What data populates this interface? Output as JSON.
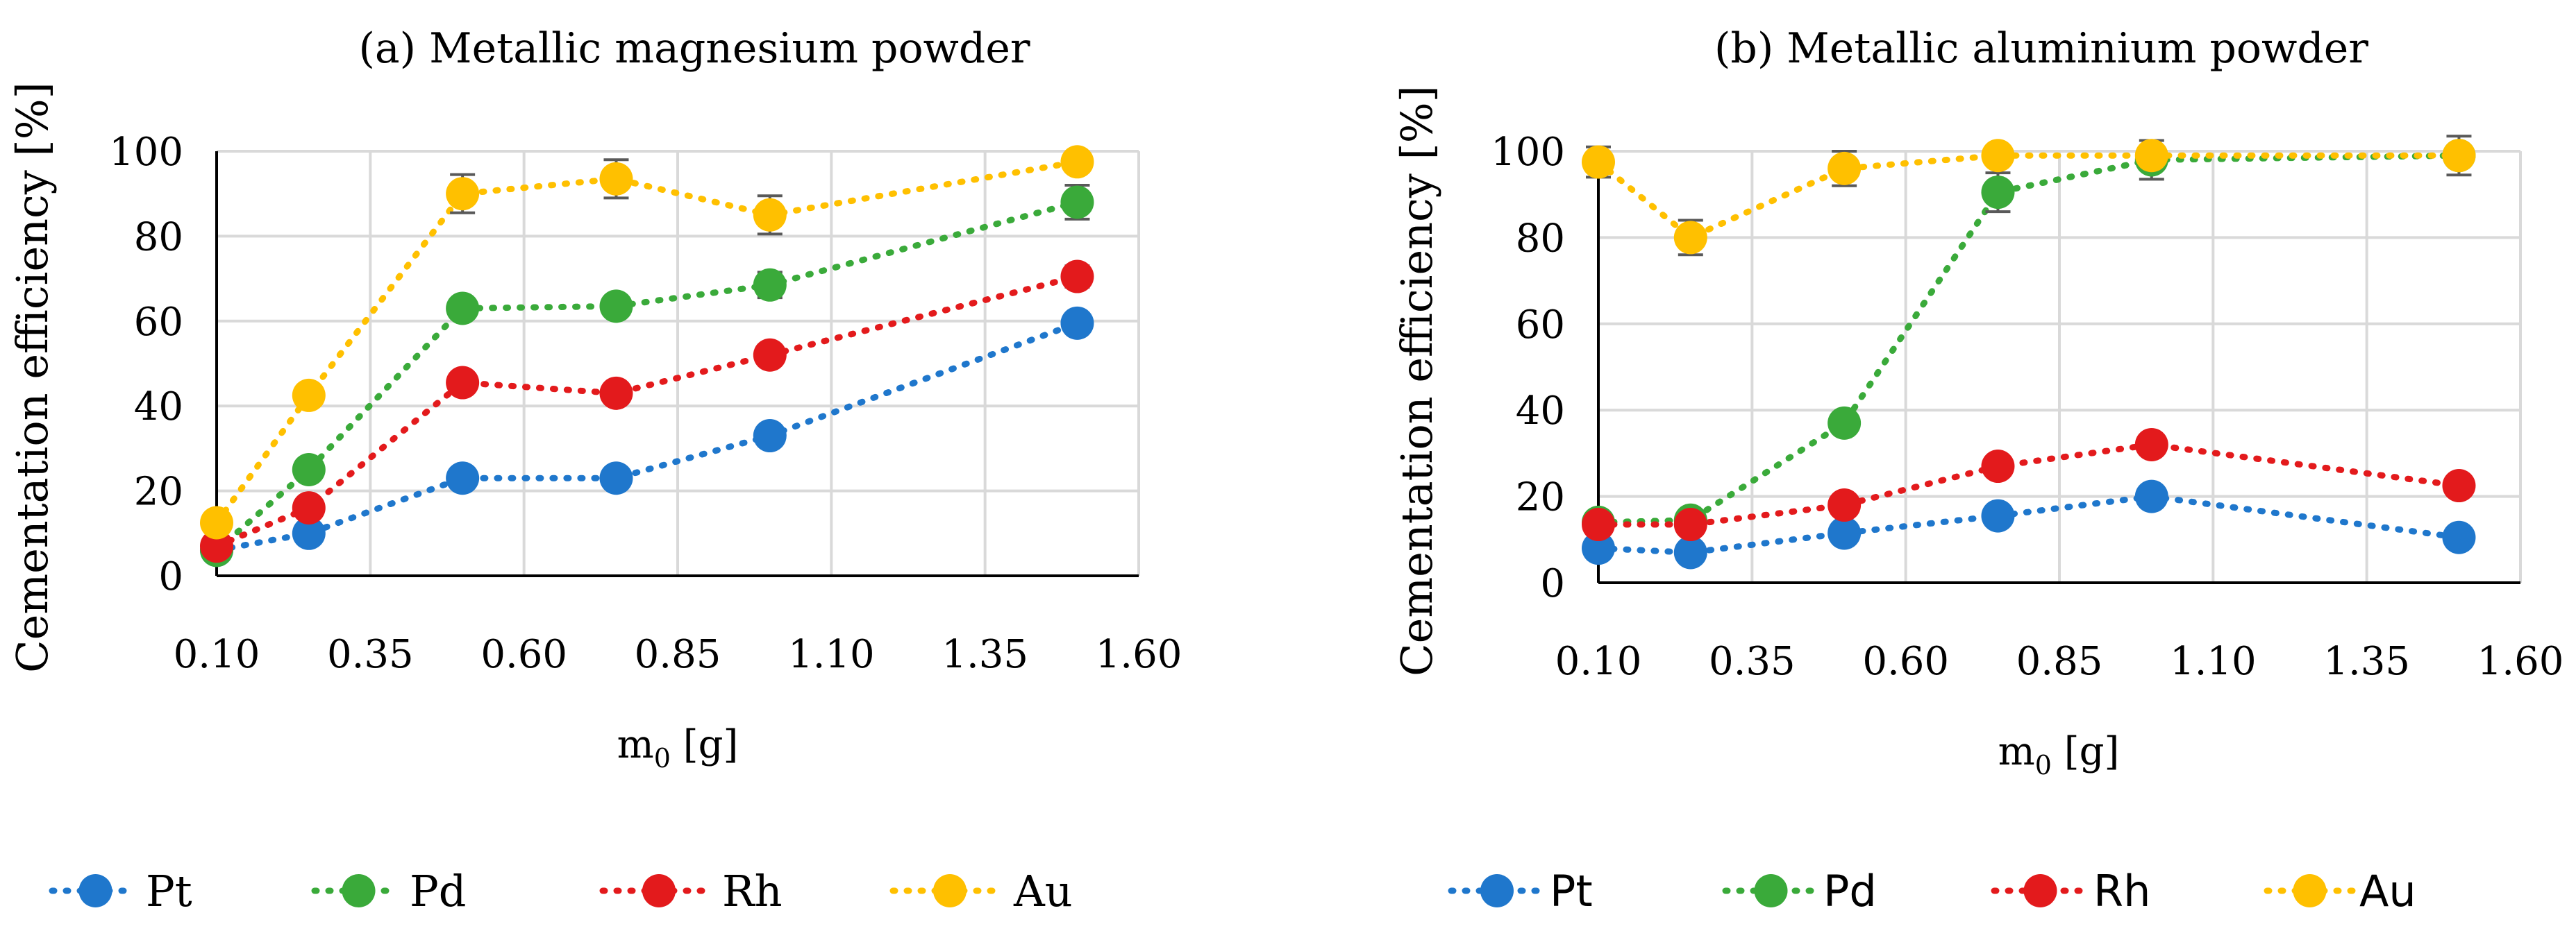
{
  "chart_data": [
    {
      "type": "line",
      "title": "(a) Metallic magnesium powder",
      "xlabel": "m",
      "xlabel_sub": "0",
      "xlabel_unit": " [g]",
      "ylabel": "Cementation efficiency [%]",
      "xlim": [
        0.1,
        1.6
      ],
      "ylim": [
        0,
        100
      ],
      "x_ticks": [
        "0.10",
        "0.35",
        "0.60",
        "0.85",
        "1.10",
        "1.35",
        "1.60"
      ],
      "y_ticks": [
        "0",
        "20",
        "40",
        "60",
        "80",
        "100"
      ],
      "grid": true,
      "legend_position": "bottom",
      "x": [
        0.1,
        0.25,
        0.5,
        0.75,
        1.0,
        1.5
      ],
      "series": [
        {
          "name": "Pt",
          "color": "#1f77cc",
          "values": [
            6,
            10,
            23,
            23,
            33,
            59.5
          ],
          "error": [
            0,
            0,
            0,
            0,
            0,
            0
          ]
        },
        {
          "name": "Pd",
          "color": "#3aaa3a",
          "values": [
            6,
            25,
            63,
            63.5,
            68.5,
            88
          ],
          "error": [
            0,
            0,
            0,
            0,
            3,
            4
          ]
        },
        {
          "name": "Rh",
          "color": "#e31a1c",
          "values": [
            7,
            16,
            45.5,
            43,
            52,
            70.5
          ],
          "error": [
            0,
            0,
            0,
            0,
            0,
            2.5
          ]
        },
        {
          "name": "Au",
          "color": "#ffc000",
          "values": [
            12.5,
            42.5,
            90,
            93.5,
            85,
            97.5
          ],
          "error": [
            0,
            0,
            4.5,
            4.5,
            4.5,
            0
          ]
        }
      ]
    },
    {
      "type": "line",
      "title": "(b) Metallic aluminium powder",
      "xlabel": "m",
      "xlabel_sub": "0",
      "xlabel_unit": " [g]",
      "ylabel": "Cementation efficiency [%]",
      "xlim": [
        0.1,
        1.6
      ],
      "ylim": [
        0,
        100
      ],
      "x_ticks": [
        "0.10",
        "0.35",
        "0.60",
        "0.85",
        "1.10",
        "1.35",
        "1.60"
      ],
      "y_ticks": [
        "0",
        "20",
        "40",
        "60",
        "80",
        "100"
      ],
      "grid": true,
      "legend_position": "bottom",
      "x": [
        0.1,
        0.25,
        0.5,
        0.75,
        1.0,
        1.5
      ],
      "series": [
        {
          "name": "Pt",
          "color": "#1f77cc",
          "values": [
            8,
            7,
            11.5,
            15.5,
            20,
            10.5
          ],
          "error": [
            0,
            0,
            0,
            0,
            0,
            0
          ]
        },
        {
          "name": "Pd",
          "color": "#3aaa3a",
          "values": [
            14,
            14.5,
            37,
            90.5,
            98,
            99
          ],
          "error": [
            0,
            0,
            0,
            4.5,
            4.5,
            4.5
          ]
        },
        {
          "name": "Rh",
          "color": "#e31a1c",
          "values": [
            13.5,
            13.5,
            18,
            27,
            32,
            22.5
          ],
          "error": [
            0,
            0,
            0,
            0,
            0,
            0
          ]
        },
        {
          "name": "Au",
          "color": "#ffc000",
          "values": [
            97.5,
            80,
            96,
            99,
            99,
            99
          ],
          "error": [
            3.5,
            4,
            4,
            0,
            0,
            0
          ]
        }
      ]
    }
  ]
}
